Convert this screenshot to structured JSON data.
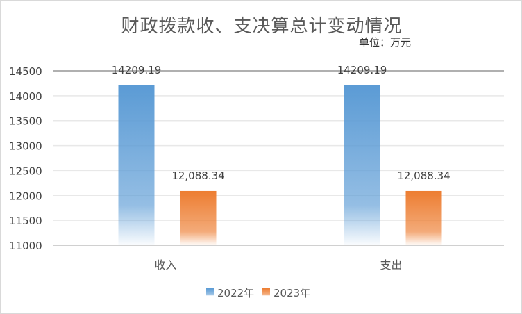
{
  "chart_data": {
    "type": "bar",
    "title": "财政拨款收、支决算总计变动情况",
    "subtitle": "单位：万元",
    "categories": [
      "收入",
      "支出"
    ],
    "series": [
      {
        "name": "2022年",
        "values": [
          14209.19,
          14209.19
        ],
        "labels": [
          "14209.19",
          "14209.19"
        ],
        "color": "#5b9bd5"
      },
      {
        "name": "2023年",
        "values": [
          12088.34,
          12088.34
        ],
        "labels": [
          "12,088.34",
          "12,088.34"
        ],
        "color": "#ed7d31"
      }
    ],
    "ylim": [
      11000,
      14500
    ],
    "yticks": [
      11000,
      11500,
      12000,
      12500,
      13000,
      13500,
      14000,
      14500
    ],
    "grid": true,
    "legend": "bottom"
  }
}
